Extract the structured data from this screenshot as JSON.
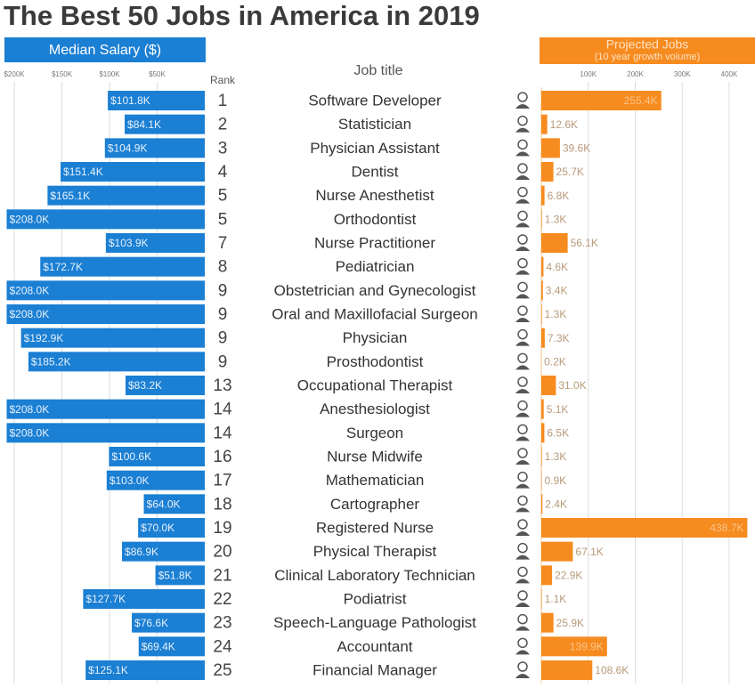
{
  "chart_data": {
    "type": "bar",
    "title": "The Best 50 Jobs in America in 2019",
    "rank_label": "Rank",
    "category_label": "Job title",
    "categories": [
      "Software Developer",
      "Statistician",
      "Physician Assistant",
      "Dentist",
      "Nurse Anesthetist",
      "Orthodontist",
      "Nurse Practitioner",
      "Pediatrician",
      "Obstetrician and Gynecologist",
      "Oral and Maxillofacial Surgeon",
      "Physician",
      "Prosthodontist",
      "Occupational Therapist",
      "Anesthesiologist",
      "Surgeon",
      "Nurse Midwife",
      "Mathematician",
      "Cartographer",
      "Registered Nurse",
      "Physical Therapist",
      "Clinical Laboratory Technician",
      "Podiatrist",
      "Speech-Language Pathologist",
      "Accountant",
      "Financial Manager"
    ],
    "ranks": [
      1,
      2,
      3,
      4,
      5,
      5,
      7,
      8,
      9,
      9,
      9,
      9,
      13,
      14,
      14,
      16,
      17,
      18,
      19,
      20,
      21,
      22,
      23,
      24,
      25
    ],
    "xlim": [
      0,
      215000
    ],
    "xticks": [
      {
        "value": 200000,
        "label": "$200K"
      },
      {
        "value": 150000,
        "label": "$150K"
      },
      {
        "value": 100000,
        "label": "$100K"
      },
      {
        "value": 50000,
        "label": "$50K"
      }
    ],
    "x2lim": [
      0,
      455000
    ],
    "x2ticks": [
      {
        "value": 100000,
        "label": "100K"
      },
      {
        "value": 200000,
        "label": "200K"
      },
      {
        "value": 300000,
        "label": "300K"
      },
      {
        "value": 400000,
        "label": "400K"
      }
    ],
    "series": [
      {
        "name": "Median Salary ($)",
        "color": "#1b7fd3",
        "axis": "x",
        "values": [
          101800,
          84100,
          104900,
          151400,
          165100,
          208000,
          103900,
          172700,
          208000,
          208000,
          192900,
          185200,
          83200,
          208000,
          208000,
          100600,
          103000,
          64000,
          70000,
          86900,
          51800,
          127700,
          76600,
          69400,
          125100
        ],
        "value_labels": [
          "$101.8K",
          "$84.1K",
          "$104.9K",
          "$151.4K",
          "$165.1K",
          "$208.0K",
          "$103.9K",
          "$172.7K",
          "$208.0K",
          "$208.0K",
          "$192.9K",
          "$185.2K",
          "$83.2K",
          "$208.0K",
          "$208.0K",
          "$100.6K",
          "$103.0K",
          "$64.0K",
          "$70.0K",
          "$86.9K",
          "$51.8K",
          "$127.7K",
          "$76.6K",
          "$69.4K",
          "$125.1K"
        ]
      },
      {
        "name": "Projected Jobs",
        "note": "(10 year growth volume)",
        "color": "#f68b1f",
        "axis": "x2",
        "values": [
          255400,
          12600,
          39600,
          25700,
          6800,
          1300,
          56100,
          4600,
          3400,
          1300,
          7300,
          200,
          31000,
          5100,
          6500,
          1300,
          900,
          2400,
          438700,
          67100,
          22900,
          1100,
          25900,
          139900,
          108600
        ],
        "value_labels": [
          "255.4K",
          "12.6K",
          "39.6K",
          "25.7K",
          "6.8K",
          "1.3K",
          "56.1K",
          "4.6K",
          "3.4K",
          "1.3K",
          "7.3K",
          "0.2K",
          "31.0K",
          "5.1K",
          "6.5K",
          "1.3K",
          "0.9K",
          "2.4K",
          "438.7K",
          "67.1K",
          "22.9K",
          "1.1K",
          "25.9K",
          "139.9K",
          "108.6K"
        ]
      }
    ]
  }
}
